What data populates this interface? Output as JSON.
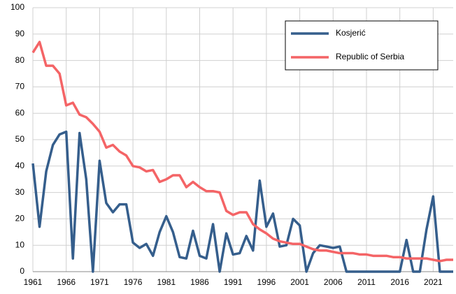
{
  "chart_data": {
    "type": "line",
    "x": [
      1961,
      1962,
      1963,
      1964,
      1965,
      1966,
      1967,
      1968,
      1969,
      1970,
      1971,
      1972,
      1973,
      1974,
      1975,
      1976,
      1977,
      1978,
      1979,
      1980,
      1981,
      1982,
      1983,
      1984,
      1985,
      1986,
      1987,
      1988,
      1989,
      1990,
      1991,
      1992,
      1993,
      1994,
      1995,
      1996,
      1997,
      1998,
      1999,
      2000,
      2001,
      2002,
      2003,
      2004,
      2005,
      2006,
      2007,
      2008,
      2009,
      2010,
      2011,
      2012,
      2013,
      2014,
      2015,
      2016,
      2017,
      2018,
      2019,
      2020,
      2021,
      2022,
      2023,
      2024
    ],
    "series": [
      {
        "name": "Kosjerić",
        "color": "#355e8c",
        "values": [
          41,
          17,
          38,
          48,
          52,
          53,
          5,
          52.5,
          35,
          0,
          42,
          26,
          22.5,
          25.5,
          25.5,
          11,
          9,
          10.5,
          6,
          15,
          21,
          15,
          5.5,
          5,
          15.5,
          6,
          5,
          18,
          0,
          14.5,
          6.5,
          7,
          13.5,
          8,
          34.5,
          17,
          22,
          9.5,
          10,
          20,
          17.5,
          0,
          7,
          10,
          9.5,
          9,
          9.5,
          0,
          0,
          0,
          0,
          0,
          0,
          0,
          0,
          0,
          12,
          0,
          0,
          16,
          28.5,
          0,
          0,
          0
        ]
      },
      {
        "name": "Republic of Serbia",
        "color": "#f46466",
        "values": [
          83,
          87,
          78,
          78,
          75,
          63,
          64,
          59.5,
          58.5,
          56,
          53,
          47,
          48,
          45.5,
          44,
          40,
          39.5,
          38,
          38.5,
          34,
          35,
          36.5,
          36.5,
          32,
          34,
          32,
          30.5,
          30.5,
          30,
          23,
          21.5,
          22.5,
          22.5,
          18,
          16,
          14.5,
          12.5,
          11.5,
          11,
          10.5,
          10.5,
          9.5,
          8.5,
          8,
          8,
          7.5,
          7,
          7,
          7,
          6.5,
          6.5,
          6,
          6,
          6,
          5.5,
          5.5,
          5,
          5,
          5,
          5,
          4.5,
          4,
          4.5,
          4.5
        ]
      }
    ],
    "xlim": [
      1961,
      2024
    ],
    "xticks": [
      1961,
      1966,
      1971,
      1976,
      1981,
      1986,
      1991,
      1996,
      2001,
      2006,
      2011,
      2016,
      2021
    ],
    "ylim": [
      0,
      100
    ],
    "yticks": [
      0,
      10,
      20,
      30,
      40,
      50,
      60,
      70,
      80,
      90,
      100
    ],
    "grid": true,
    "legend": "top-right"
  }
}
